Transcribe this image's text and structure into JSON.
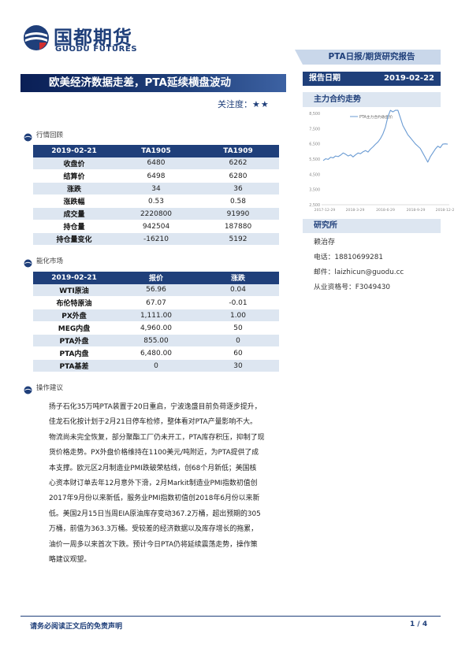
{
  "header": {
    "logo_cn": "国都期货",
    "logo_en": "GUODU FUTURES",
    "report_type": "PTA日报/期货研究报告"
  },
  "title": {
    "main": "欧美经济数据走差，PTA延续横盘波动",
    "focus_label": "关注度：",
    "focus_stars": "★★"
  },
  "sidebar": {
    "date_label": "报告日期",
    "date_value": "2019-02-22",
    "chart_header": "主力合约走势",
    "institute_header": "研究所",
    "analyst": "赖治存",
    "phone": "电话：18810699281",
    "email": "邮件：laizhicun@guodu.cc",
    "license": "从业资格号：F3049430"
  },
  "sections": {
    "review_label": "行情回顾",
    "chem_label": "能化市场",
    "advice_label": "操作建议"
  },
  "review_table": {
    "headers": [
      "2019-02-21",
      "TA1905",
      "TA1909"
    ],
    "rows": [
      {
        "label": "收盘价",
        "c1": "6480",
        "c2": "6262"
      },
      {
        "label": "结算价",
        "c1": "6498",
        "c2": "6280"
      },
      {
        "label": "涨跌",
        "c1": "34",
        "c2": "36"
      },
      {
        "label": "涨跌幅",
        "c1": "0.53",
        "c2": "0.58"
      },
      {
        "label": "成交量",
        "c1": "2220800",
        "c2": "91990"
      },
      {
        "label": "持仓量",
        "c1": "942504",
        "c2": "187880"
      },
      {
        "label": "持仓量变化",
        "c1": "-16210",
        "c2": "5192"
      }
    ]
  },
  "chem_table": {
    "headers": [
      "2019-02-21",
      "报价",
      "涨跌"
    ],
    "rows": [
      {
        "label": "WTI原油",
        "c1": "56.96",
        "c2": "0.04"
      },
      {
        "label": "布伦特原油",
        "c1": "67.07",
        "c2": "-0.01"
      },
      {
        "label": "PX外盘",
        "c1": "1,111.00",
        "c2": "1.00"
      },
      {
        "label": "MEG内盘",
        "c1": "4,960.00",
        "c2": "50"
      },
      {
        "label": "PTA外盘",
        "c1": "855.00",
        "c2": "0"
      },
      {
        "label": "PTA内盘",
        "c1": "6,480.00",
        "c2": "60"
      },
      {
        "label": "PTA基差",
        "c1": "0",
        "c2": "30"
      }
    ]
  },
  "advice": {
    "lines": [
      "扬子石化35万吨PTA装置于20日重启，宁波逸盛目前负荷逐步提升，",
      "佳龙石化按计划于2月21日停车检修，整体看对PTA产量影响不大。",
      "物流尚未完全恢复，部分聚酯工厂仍未开工，PTA库存积压，抑制了现",
      "货价格走势。PX外盘价格维持在1100美元/吨附近，为PTA提供了成",
      "本支撑。欧元区2月制造业PMI跌破荣枯线，创68个月新低；美国核",
      "心资本财订单去年12月意外下滑，2月Markit制造业PMI指数初值创",
      "2017年9月份以来新低，服务业PMI指数初值创2018年6月份以来新",
      "低。美国2月15日当周EIA原油库存变动367.2万桶，超出预期的305",
      "万桶，前值为363.3万桶。受较差的经济数据以及库存增长的拖累，",
      "油价一周多以来首次下跌。预计今日PTA仍将延续震荡走势，操作策",
      "略建议观望。"
    ]
  },
  "footer": {
    "disclaimer": "请务必阅读正文后的免责声明",
    "page": "1 / 4"
  },
  "chart_data": {
    "type": "line",
    "title": "",
    "legend": [
      "PTA主力合约收盘价"
    ],
    "legend_position": "top",
    "yticks": [
      "2,500",
      "3,500",
      "4,500",
      "5,500",
      "6,500",
      "7,500",
      "8,500"
    ],
    "xticks": [
      "2017-12-29",
      "2018-3-29",
      "2018-6-29",
      "2018-9-29",
      "2018-12-29"
    ],
    "ylim": [
      2500,
      8500
    ],
    "grid": false,
    "color": "#6a9bd3",
    "series": [
      {
        "name": "PTA主力合约收盘价",
        "values": [
          5400,
          5520,
          5480,
          5620,
          5580,
          5700,
          5660,
          5760,
          5900,
          5820,
          5700,
          5780,
          5640,
          5780,
          5900,
          5850,
          5980,
          6060,
          5960,
          6150,
          6300,
          6480,
          6620,
          6850,
          7150,
          7600,
          8300,
          8900,
          8600,
          9000,
          8700,
          8200,
          7700,
          7400,
          7100,
          6900,
          6700,
          6500,
          6350,
          6200,
          5900,
          5600,
          5300,
          5650,
          5900,
          6150,
          6350,
          6250,
          6480,
          6500,
          6480
        ]
      }
    ]
  }
}
